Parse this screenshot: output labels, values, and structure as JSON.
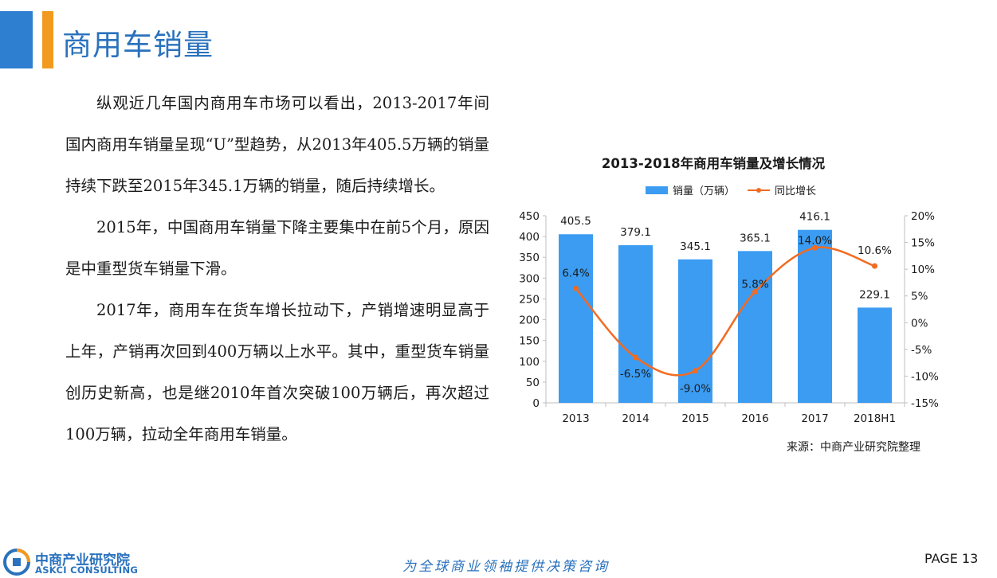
{
  "header": {
    "title": "商用车销量"
  },
  "body": {
    "paragraphs": [
      "纵观近几年国内商用车市场可以看出，2013-2017年间国内商用车销量呈现“U”型趋势，从2013年405.5万辆的销量持续下跌至2015年345.1万辆的销量，随后持续增长。",
      "2015年，中国商用车销量下降主要集中在前5个月，原因是中重型货车销量下滑。",
      "2017年，商用车在货车增长拉动下，产销增速明显高于上年，产销再次回到400万辆以上水平。其中，重型货车销量创历史新高，也是继2010年首次突破100万辆后，再次超过100万辆，拉动全年商用车销量。"
    ]
  },
  "chart_data": {
    "type": "bar",
    "title": "2013-2018年商用车销量及增长情况",
    "categories": [
      "2013",
      "2014",
      "2015",
      "2016",
      "2017",
      "2018H1"
    ],
    "series": [
      {
        "name": "销量（万辆）",
        "type": "bar",
        "axis": "left",
        "color": "#3b9cf2",
        "values": [
          405.5,
          379.1,
          345.1,
          365.1,
          416.1,
          229.1
        ],
        "labels": [
          "405.5",
          "379.1",
          "345.1",
          "365.1",
          "416.1",
          "229.1"
        ]
      },
      {
        "name": "同比增长",
        "type": "line",
        "axis": "right",
        "color": "#f26b21",
        "values": [
          6.4,
          -6.5,
          -9.0,
          5.8,
          14.0,
          10.6
        ],
        "labels": [
          "6.4%",
          "-6.5%",
          "-9.0%",
          "5.8%",
          "14.0%",
          "10.6%"
        ]
      }
    ],
    "y_left": {
      "min": 0,
      "max": 450,
      "ticks": [
        "0",
        "50",
        "100",
        "150",
        "200",
        "250",
        "300",
        "350",
        "400",
        "450"
      ]
    },
    "y_right": {
      "min": -15,
      "max": 20,
      "ticks": [
        "-15%",
        "-10%",
        "-5%",
        "0%",
        "5%",
        "10%",
        "15%",
        "20%"
      ]
    },
    "grid": false,
    "legend_position": "top-center",
    "source": "来源：中商产业研究院整理"
  },
  "footer": {
    "logo_cn": "中商产业研究院",
    "logo_en": "ASKCI CONSULTING",
    "slogan": "为全球商业领袖提供决策咨询",
    "page": "PAGE 13"
  },
  "colors": {
    "accent_blue": "#2a72bd",
    "accent_orange": "#f29a1f"
  }
}
